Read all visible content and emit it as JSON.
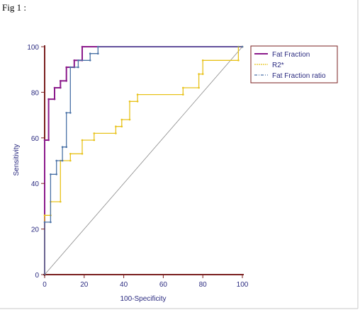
{
  "figure_label": "Fig 1 :",
  "chart_data": {
    "type": "line",
    "title": "",
    "xlabel": "100-Specificity",
    "ylabel": "Sensitivity",
    "xlim": [
      0,
      100
    ],
    "ylim": [
      0,
      100
    ],
    "xticks": [
      0,
      20,
      40,
      60,
      80,
      100
    ],
    "yticks": [
      0,
      20,
      40,
      60,
      80,
      100
    ],
    "grid": false,
    "legend_position": "top-right",
    "diagonal_reference": true,
    "series": [
      {
        "name": "Fat Fraction",
        "color": "#8b1a8b",
        "style": "solid",
        "points": [
          [
            0,
            0
          ],
          [
            0,
            59
          ],
          [
            2,
            59
          ],
          [
            2,
            77
          ],
          [
            5,
            77
          ],
          [
            5,
            82
          ],
          [
            8,
            82
          ],
          [
            8,
            85
          ],
          [
            11,
            85
          ],
          [
            11,
            91
          ],
          [
            15,
            91
          ],
          [
            15,
            94
          ],
          [
            19,
            94
          ],
          [
            19,
            100
          ],
          [
            100,
            100
          ]
        ]
      },
      {
        "name": "R2*",
        "color": "#e8c21a",
        "style": "solid",
        "points": [
          [
            0,
            0
          ],
          [
            0,
            26
          ],
          [
            3,
            26
          ],
          [
            3,
            32
          ],
          [
            8,
            32
          ],
          [
            8,
            50
          ],
          [
            13,
            50
          ],
          [
            13,
            53
          ],
          [
            19,
            53
          ],
          [
            19,
            59
          ],
          [
            25,
            59
          ],
          [
            25,
            62
          ],
          [
            36,
            62
          ],
          [
            36,
            65
          ],
          [
            39,
            65
          ],
          [
            39,
            68
          ],
          [
            43,
            68
          ],
          [
            43,
            76
          ],
          [
            47,
            76
          ],
          [
            47,
            79
          ],
          [
            70,
            79
          ],
          [
            70,
            82
          ],
          [
            78,
            82
          ],
          [
            78,
            88
          ],
          [
            80,
            88
          ],
          [
            80,
            94
          ],
          [
            98,
            94
          ],
          [
            98,
            100
          ],
          [
            100,
            100
          ]
        ]
      },
      {
        "name": "Fat Fraction ratio",
        "color": "#4a72a6",
        "style": "solid",
        "points": [
          [
            0,
            0
          ],
          [
            0,
            23
          ],
          [
            3,
            23
          ],
          [
            3,
            44
          ],
          [
            6,
            44
          ],
          [
            6,
            50
          ],
          [
            9,
            50
          ],
          [
            9,
            56
          ],
          [
            11,
            56
          ],
          [
            11,
            71
          ],
          [
            13,
            71
          ],
          [
            13,
            91
          ],
          [
            17,
            91
          ],
          [
            17,
            94
          ],
          [
            23,
            94
          ],
          [
            23,
            97
          ],
          [
            27,
            97
          ],
          [
            27,
            100
          ],
          [
            100,
            100
          ]
        ]
      }
    ]
  }
}
